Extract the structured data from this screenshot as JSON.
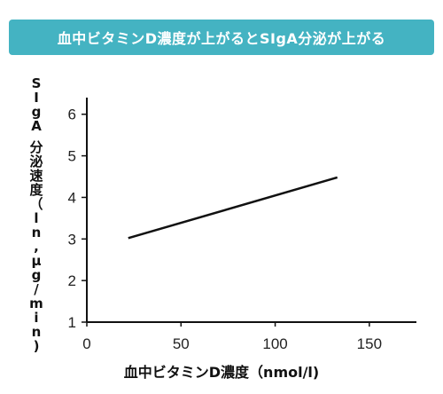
{
  "banner": {
    "title": "血中ビタミンD濃度が上がるとSIgA分泌が上がる",
    "color": "#44b3c2"
  },
  "chart_data": {
    "type": "line",
    "title": "血中ビタミンD濃度が上がるとSIgA分泌が上がる",
    "xlabel": "血中ビタミンD濃度（nmol/l)",
    "ylabel": "SIgA 分泌速度（ln,μg/min)",
    "xlim": [
      0,
      175
    ],
    "ylim": [
      1,
      6.4
    ],
    "xticks": [
      0,
      50,
      100,
      150
    ],
    "yticks": [
      1,
      2,
      3,
      4,
      5,
      6
    ],
    "grid": false,
    "series": [
      {
        "x": [
          22,
          133
        ],
        "y": [
          3.02,
          4.48
        ],
        "color": "#111111"
      }
    ]
  }
}
